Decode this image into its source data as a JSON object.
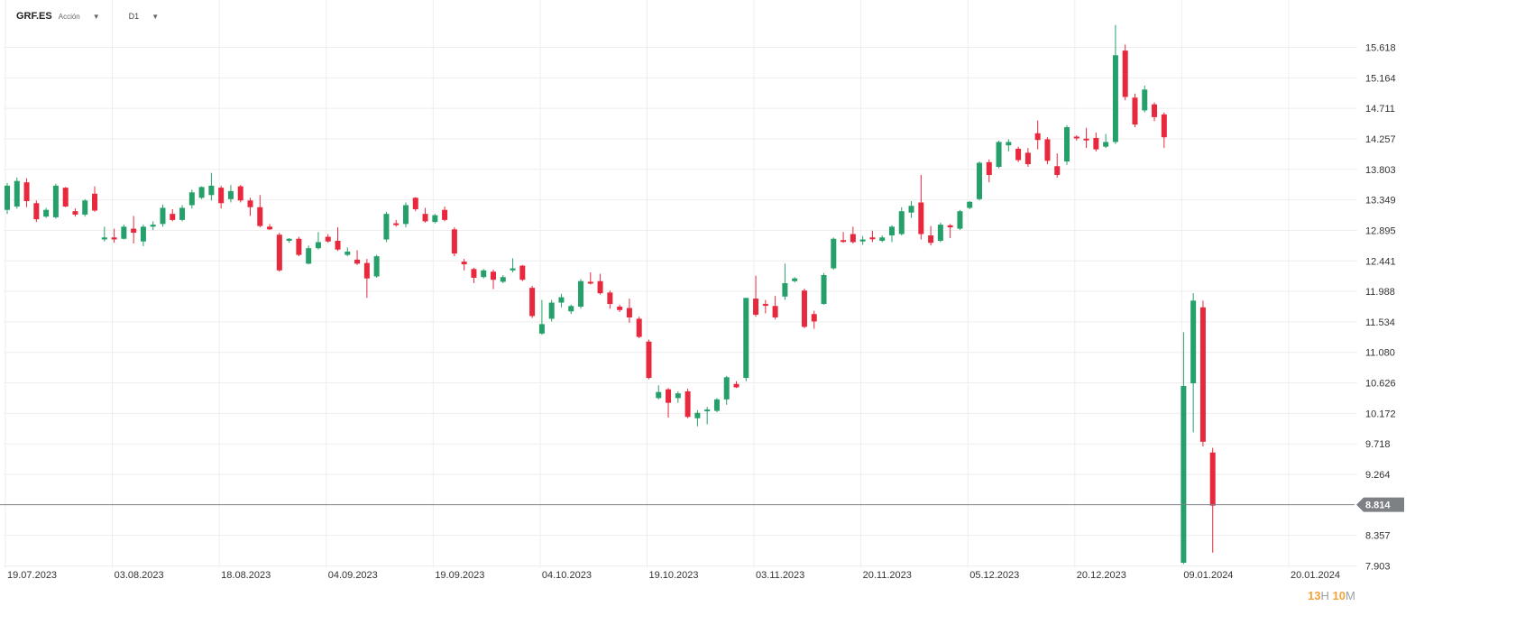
{
  "header": {
    "symbol": "GRF.ES",
    "asset_type": "Acción",
    "timeframe": "D1"
  },
  "timer": {
    "hours": "13",
    "hours_unit": "H",
    "minutes": "10",
    "minutes_unit": "M"
  },
  "colors": {
    "up": "#26a06a",
    "down": "#e8283c",
    "grid": "#eeeeee",
    "price_line": "#7d8084"
  },
  "current_price": {
    "value": 8.814,
    "label": "8.814"
  },
  "chart_data": {
    "type": "candlestick",
    "title": "",
    "ylim": [
      7.903,
      15.95
    ],
    "y_ticks": [
      "15.618",
      "15.164",
      "14.711",
      "14.257",
      "13.803",
      "13.349",
      "12.895",
      "12.441",
      "11.988",
      "11.534",
      "11.080",
      "10.626",
      "10.172",
      "9.718",
      "9.264",
      "8.357",
      "7.903"
    ],
    "x_ticks": [
      {
        "label": "19.07.2023",
        "index": 0
      },
      {
        "label": "03.08.2023",
        "index": 11
      },
      {
        "label": "18.08.2023",
        "index": 22
      },
      {
        "label": "04.09.2023",
        "index": 33
      },
      {
        "label": "19.09.2023",
        "index": 44
      },
      {
        "label": "04.10.2023",
        "index": 55
      },
      {
        "label": "19.10.2023",
        "index": 66
      },
      {
        "label": "03.11.2023",
        "index": 77
      },
      {
        "label": "20.11.2023",
        "index": 88
      },
      {
        "label": "05.12.2023",
        "index": 99
      },
      {
        "label": "20.12.2023",
        "index": 110
      },
      {
        "label": "09.01.2024",
        "index": 121
      },
      {
        "label": "20.01.2024",
        "index": 132
      }
    ],
    "candles": [
      [
        13.2,
        13.56,
        13.14,
        13.6
      ],
      [
        13.25,
        13.63,
        13.22,
        13.68
      ],
      [
        13.61,
        13.33,
        13.24,
        13.67
      ],
      [
        13.3,
        13.06,
        13.02,
        13.34
      ],
      [
        13.1,
        13.2,
        13.08,
        13.23
      ],
      [
        13.09,
        13.56,
        13.07,
        13.59
      ],
      [
        13.53,
        13.25,
        13.24,
        13.54
      ],
      [
        13.18,
        13.13,
        13.1,
        13.22
      ],
      [
        13.13,
        13.34,
        13.1,
        13.36
      ],
      [
        13.44,
        13.19,
        13.17,
        13.55
      ],
      [
        12.76,
        12.79,
        12.73,
        12.95
      ],
      [
        12.79,
        12.76,
        12.71,
        12.92
      ],
      [
        12.77,
        12.95,
        12.76,
        12.98
      ],
      [
        12.92,
        12.86,
        12.7,
        13.11
      ],
      [
        12.73,
        12.95,
        12.66,
        12.98
      ],
      [
        12.95,
        12.98,
        12.9,
        13.03
      ],
      [
        12.99,
        13.23,
        12.95,
        13.28
      ],
      [
        13.14,
        13.05,
        13.03,
        13.21
      ],
      [
        13.05,
        13.23,
        13.03,
        13.27
      ],
      [
        13.27,
        13.46,
        13.22,
        13.5
      ],
      [
        13.38,
        13.54,
        13.36,
        13.55
      ],
      [
        13.42,
        13.56,
        13.34,
        13.75
      ],
      [
        13.53,
        13.3,
        13.22,
        13.56
      ],
      [
        13.36,
        13.48,
        13.31,
        13.57
      ],
      [
        13.55,
        13.34,
        13.31,
        13.57
      ],
      [
        13.34,
        13.24,
        13.11,
        13.38
      ],
      [
        13.24,
        12.96,
        12.94,
        13.42
      ],
      [
        12.95,
        12.91,
        12.9,
        12.99
      ],
      [
        12.83,
        12.3,
        12.28,
        12.86
      ],
      [
        12.74,
        12.77,
        12.71,
        12.78
      ],
      [
        12.77,
        12.53,
        12.51,
        12.8
      ],
      [
        12.4,
        12.63,
        12.39,
        12.67
      ],
      [
        12.63,
        12.72,
        12.61,
        12.87
      ],
      [
        12.8,
        12.73,
        12.71,
        12.84
      ],
      [
        12.74,
        12.61,
        12.59,
        12.94
      ],
      [
        12.53,
        12.58,
        12.51,
        12.64
      ],
      [
        12.46,
        12.4,
        12.38,
        12.6
      ],
      [
        12.41,
        12.18,
        11.89,
        12.47
      ],
      [
        12.21,
        12.51,
        12.19,
        12.53
      ],
      [
        12.76,
        13.14,
        12.72,
        13.17
      ],
      [
        13.0,
        12.98,
        12.95,
        13.05
      ],
      [
        12.99,
        13.27,
        12.94,
        13.31
      ],
      [
        13.38,
        13.21,
        13.18,
        13.39
      ],
      [
        13.14,
        13.03,
        13.01,
        13.23
      ],
      [
        13.02,
        13.12,
        13.0,
        13.14
      ],
      [
        13.2,
        13.05,
        13.03,
        13.25
      ],
      [
        12.91,
        12.55,
        12.51,
        12.94
      ],
      [
        12.43,
        12.39,
        12.3,
        12.47
      ],
      [
        12.32,
        12.19,
        12.11,
        12.34
      ],
      [
        12.2,
        12.3,
        12.18,
        12.32
      ],
      [
        12.28,
        12.16,
        12.02,
        12.31
      ],
      [
        12.13,
        12.2,
        12.11,
        12.23
      ],
      [
        12.3,
        12.33,
        12.27,
        12.48
      ],
      [
        12.37,
        12.16,
        12.14,
        12.38
      ],
      [
        12.04,
        11.62,
        11.59,
        12.07
      ],
      [
        11.36,
        11.5,
        11.34,
        11.86
      ],
      [
        11.58,
        11.82,
        11.54,
        11.86
      ],
      [
        11.82,
        11.9,
        11.75,
        11.95
      ],
      [
        11.69,
        11.77,
        11.65,
        11.79
      ],
      [
        11.76,
        12.14,
        11.73,
        12.17
      ],
      [
        12.13,
        12.12,
        12.09,
        12.27
      ],
      [
        12.14,
        11.96,
        11.94,
        12.25
      ],
      [
        11.97,
        11.8,
        11.73,
        12.0
      ],
      [
        11.76,
        11.71,
        11.68,
        11.79
      ],
      [
        11.74,
        11.6,
        11.52,
        11.88
      ],
      [
        11.58,
        11.31,
        11.29,
        11.61
      ],
      [
        11.24,
        10.7,
        10.68,
        11.27
      ],
      [
        10.4,
        10.49,
        10.38,
        10.59
      ],
      [
        10.53,
        10.33,
        10.11,
        10.55
      ],
      [
        10.4,
        10.47,
        10.33,
        10.5
      ],
      [
        10.5,
        10.12,
        10.1,
        10.54
      ],
      [
        10.1,
        10.18,
        9.98,
        10.22
      ],
      [
        10.23,
        10.23,
        10.01,
        10.27
      ],
      [
        10.21,
        10.38,
        10.19,
        10.4
      ],
      [
        10.38,
        10.71,
        10.3,
        10.73
      ],
      [
        10.61,
        10.56,
        10.55,
        10.65
      ],
      [
        10.7,
        11.89,
        10.65,
        11.89
      ],
      [
        11.88,
        11.64,
        11.61,
        12.22
      ],
      [
        11.8,
        11.79,
        11.66,
        11.86
      ],
      [
        11.77,
        11.6,
        11.57,
        11.92
      ],
      [
        11.91,
        12.11,
        11.86,
        12.4
      ],
      [
        12.14,
        12.18,
        12.12,
        12.2
      ],
      [
        12.0,
        11.46,
        11.44,
        12.03
      ],
      [
        11.65,
        11.54,
        11.43,
        11.7
      ],
      [
        11.8,
        12.23,
        11.79,
        12.26
      ],
      [
        12.33,
        12.77,
        12.31,
        12.79
      ],
      [
        12.75,
        12.73,
        12.71,
        12.87
      ],
      [
        12.84,
        12.72,
        12.7,
        12.95
      ],
      [
        12.73,
        12.76,
        12.68,
        12.81
      ],
      [
        12.79,
        12.77,
        12.72,
        12.89
      ],
      [
        12.74,
        12.79,
        12.72,
        12.82
      ],
      [
        12.82,
        12.95,
        12.72,
        12.97
      ],
      [
        12.84,
        13.18,
        12.82,
        13.24
      ],
      [
        13.16,
        13.26,
        13.08,
        13.33
      ],
      [
        13.31,
        12.84,
        12.76,
        13.72
      ],
      [
        12.82,
        12.71,
        12.67,
        12.96
      ],
      [
        12.74,
        12.98,
        12.72,
        13.01
      ],
      [
        12.97,
        12.94,
        12.78,
        12.99
      ],
      [
        12.92,
        13.18,
        12.9,
        13.2
      ],
      [
        13.23,
        13.32,
        13.21,
        13.33
      ],
      [
        13.36,
        13.9,
        13.34,
        13.92
      ],
      [
        13.91,
        13.72,
        13.61,
        13.95
      ],
      [
        13.84,
        14.21,
        13.82,
        14.23
      ],
      [
        14.16,
        14.21,
        14.07,
        14.25
      ],
      [
        14.11,
        13.94,
        13.91,
        14.14
      ],
      [
        14.05,
        13.88,
        13.84,
        14.12
      ],
      [
        14.34,
        14.24,
        14.1,
        14.53
      ],
      [
        14.25,
        13.93,
        13.88,
        14.28
      ],
      [
        13.85,
        13.72,
        13.68,
        14.04
      ],
      [
        13.92,
        14.43,
        13.87,
        14.46
      ],
      [
        14.29,
        14.27,
        14.23,
        14.31
      ],
      [
        14.26,
        14.24,
        14.12,
        14.42
      ],
      [
        14.27,
        14.1,
        14.07,
        14.35
      ],
      [
        14.14,
        14.21,
        14.12,
        14.33
      ],
      [
        14.21,
        15.5,
        14.18,
        15.95
      ],
      [
        15.57,
        14.88,
        14.83,
        15.66
      ],
      [
        14.87,
        14.47,
        14.43,
        14.93
      ],
      [
        14.68,
        14.99,
        14.65,
        15.05
      ],
      [
        14.77,
        14.58,
        14.52,
        14.8
      ],
      [
        14.62,
        14.28,
        14.12,
        14.65
      ],
      [
        null,
        null,
        null,
        null
      ],
      [
        7.95,
        10.58,
        7.93,
        11.38
      ],
      [
        10.62,
        11.85,
        9.89,
        11.96
      ],
      [
        11.75,
        9.75,
        9.68,
        11.85
      ],
      [
        9.59,
        8.8,
        8.1,
        9.66
      ]
    ]
  }
}
